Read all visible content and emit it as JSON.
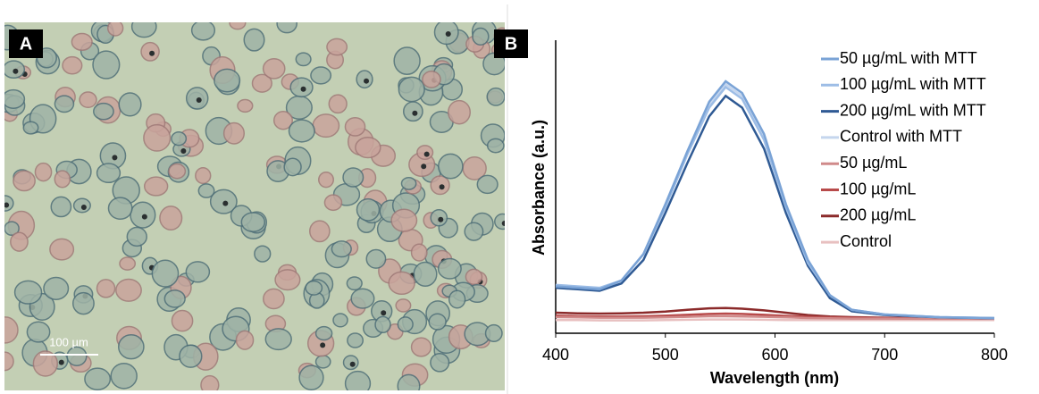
{
  "panel_a": {
    "label": "A",
    "scale_bar": "100 µm"
  },
  "chart_data": {
    "type": "line",
    "panel_label": "B",
    "x_label": "Wavelength (nm)",
    "y_label": "Absorbance (a.u.)",
    "x": [
      400,
      420,
      440,
      460,
      480,
      500,
      520,
      540,
      555,
      570,
      590,
      610,
      630,
      650,
      670,
      700,
      750,
      800
    ],
    "xlim": [
      400,
      800
    ],
    "xticks": [
      400,
      500,
      600,
      700,
      800
    ],
    "ylim": [
      0,
      1
    ],
    "series": [
      {
        "name": "50 µg/mL with MTT",
        "color": "#7aa3d6",
        "values": [
          0.16,
          0.155,
          0.15,
          0.18,
          0.27,
          0.44,
          0.62,
          0.79,
          0.86,
          0.82,
          0.68,
          0.44,
          0.25,
          0.13,
          0.08,
          0.064,
          0.055,
          0.052
        ]
      },
      {
        "name": "100 µg/mL with MTT",
        "color": "#9dbde6",
        "values": [
          0.165,
          0.16,
          0.155,
          0.18,
          0.27,
          0.43,
          0.61,
          0.77,
          0.84,
          0.8,
          0.66,
          0.43,
          0.24,
          0.13,
          0.08,
          0.064,
          0.055,
          0.052
        ]
      },
      {
        "name": "200 µg/mL with MTT",
        "color": "#2f5a94",
        "values": [
          0.155,
          0.15,
          0.145,
          0.17,
          0.25,
          0.41,
          0.58,
          0.74,
          0.81,
          0.77,
          0.63,
          0.41,
          0.23,
          0.12,
          0.075,
          0.062,
          0.054,
          0.051
        ]
      },
      {
        "name": "Control with MTT",
        "color": "#c5d6ee",
        "values": [
          0.16,
          0.155,
          0.15,
          0.18,
          0.27,
          0.43,
          0.62,
          0.78,
          0.85,
          0.81,
          0.67,
          0.43,
          0.24,
          0.13,
          0.08,
          0.064,
          0.055,
          0.052
        ]
      },
      {
        "name": "50 µg/mL",
        "color": "#d08a8a",
        "values": [
          0.055,
          0.054,
          0.053,
          0.053,
          0.053,
          0.054,
          0.056,
          0.058,
          0.058,
          0.057,
          0.056,
          0.054,
          0.052,
          0.051,
          0.05,
          0.05,
          0.049,
          0.049
        ]
      },
      {
        "name": "100 µg/mL",
        "color": "#b84a4a",
        "values": [
          0.06,
          0.058,
          0.057,
          0.057,
          0.058,
          0.06,
          0.063,
          0.066,
          0.067,
          0.066,
          0.063,
          0.059,
          0.056,
          0.054,
          0.053,
          0.052,
          0.051,
          0.05
        ]
      },
      {
        "name": "200 µg/mL",
        "color": "#8b2a2a",
        "values": [
          0.07,
          0.068,
          0.067,
          0.068,
          0.07,
          0.074,
          0.08,
          0.085,
          0.086,
          0.084,
          0.078,
          0.07,
          0.062,
          0.057,
          0.055,
          0.053,
          0.052,
          0.051
        ]
      },
      {
        "name": "Control",
        "color": "#e8c0c0",
        "values": [
          0.045,
          0.045,
          0.044,
          0.044,
          0.044,
          0.045,
          0.046,
          0.047,
          0.047,
          0.047,
          0.046,
          0.045,
          0.045,
          0.045,
          0.045,
          0.045,
          0.045,
          0.045
        ]
      }
    ]
  }
}
